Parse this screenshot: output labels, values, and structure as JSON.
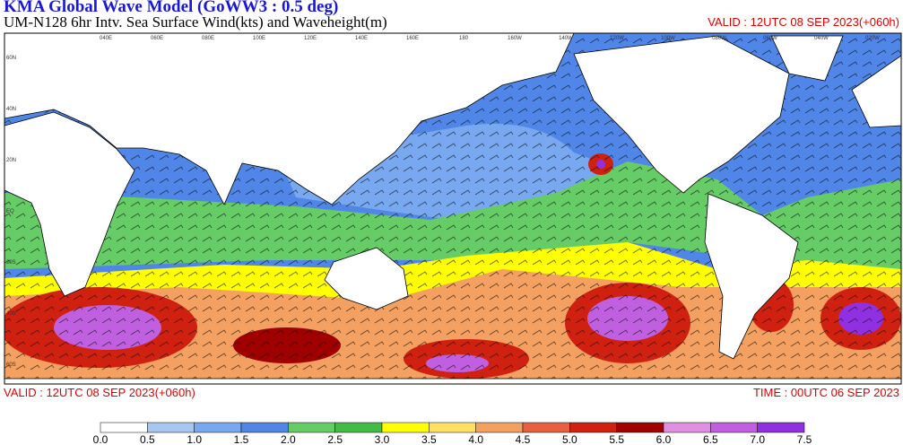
{
  "header": {
    "title": "KMA  Global Wave Model (GoWW3 : 0.5 deg)",
    "subtitle": "UM-N128  6hr Intv. Sea Surface Wind(kts) and Waveheight(m)",
    "valid": "VALID : 12UTC 08 SEP 2023(+060h)"
  },
  "map": {
    "longitudes": [
      "040E",
      "060E",
      "080E",
      "100E",
      "120E",
      "140E",
      "160E",
      "180",
      "160W",
      "140W",
      "120W",
      "100W",
      "080W",
      "060W",
      "040W",
      "020W"
    ],
    "latitudes": [
      "60N",
      "40N",
      "20N",
      "EQ",
      "20S",
      "40S",
      "60S"
    ]
  },
  "footer": {
    "valid": "VALID : 12UTC 08 SEP 2023(+060h)",
    "time": "TIME : 00UTC 06 SEP 2023"
  },
  "colorbar": {
    "labels": [
      "0.0",
      "0.5",
      "1.0",
      "1.5",
      "2.0",
      "2.5",
      "3.0",
      "3.5",
      "4.0",
      "4.5",
      "5.0",
      "5.5",
      "6.0",
      "6.5",
      "7.0",
      "7.5"
    ],
    "colors": [
      "#ffffff",
      "#a6c8f0",
      "#78a8f0",
      "#4f86e8",
      "#66cc66",
      "#44bb44",
      "#ffff00",
      "#ffe060",
      "#f4a060",
      "#e86040",
      "#d02010",
      "#a00000",
      "#e090e0",
      "#c060e0",
      "#9030e0"
    ]
  }
}
